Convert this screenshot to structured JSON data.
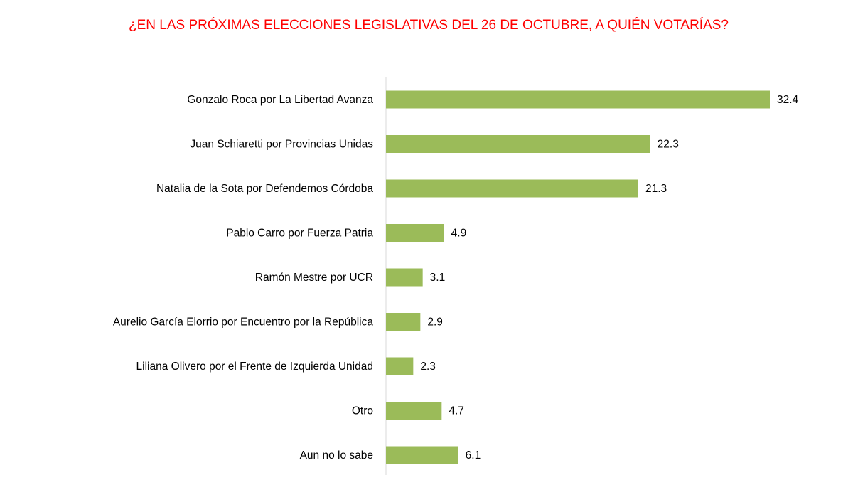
{
  "chart_data": {
    "type": "bar",
    "orientation": "horizontal",
    "title": "¿EN LAS PRÓXIMAS ELECCIONES LEGISLATIVAS DEL 26 DE OCTUBRE, A QUIÉN VOTARÍAS?",
    "categories": [
      "Gonzalo Roca por La Libertad Avanza",
      "Juan Schiaretti por Provincias Unidas",
      "Natalia de la Sota por Defendemos Córdoba",
      "Pablo Carro por Fuerza Patria",
      "Ramón Mestre por UCR",
      "Aurelio García Elorrio por Encuentro por la República",
      "Liliana Olivero por el Frente de Izquierda Unidad",
      "Otro",
      "Aun no lo sabe"
    ],
    "values": [
      32.4,
      22.3,
      21.3,
      4.9,
      3.1,
      2.9,
      2.3,
      4.7,
      6.1
    ],
    "color": "#9bbb59"
  }
}
